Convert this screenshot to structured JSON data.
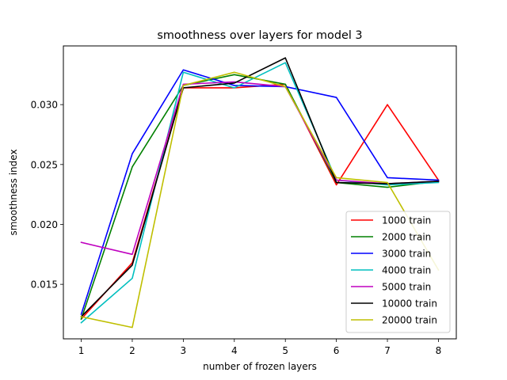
{
  "chart_data": {
    "type": "line",
    "title": "smoothness over layers for model 3",
    "xlabel": "number of frozen layers",
    "ylabel": "smoothness index",
    "x": [
      1,
      2,
      3,
      4,
      5,
      6,
      7,
      8
    ],
    "xticks": [
      "1",
      "2",
      "3",
      "4",
      "5",
      "6",
      "7",
      "8"
    ],
    "yticks": [
      0.015,
      0.02,
      0.025,
      0.03
    ],
    "ytick_labels": [
      "0.015",
      "0.020",
      "0.025",
      "0.030"
    ],
    "xlim": [
      0.65,
      8.35
    ],
    "ylim": [
      0.01045,
      0.0349
    ],
    "grid": false,
    "legend_position": "lower-right",
    "series": [
      {
        "name": "1000 train",
        "color": "#ff0000",
        "values": [
          0.0121,
          0.0168,
          0.0314,
          0.0314,
          0.0317,
          0.0233,
          0.03,
          0.0237
        ]
      },
      {
        "name": "2000 train",
        "color": "#008000",
        "values": [
          0.0121,
          0.0248,
          0.0316,
          0.0325,
          0.0317,
          0.0235,
          0.0231,
          0.0236
        ]
      },
      {
        "name": "3000 train",
        "color": "#0000ff",
        "values": [
          0.0125,
          0.0259,
          0.0329,
          0.0316,
          0.0315,
          0.0306,
          0.0239,
          0.0237
        ]
      },
      {
        "name": "4000 train",
        "color": "#00bfbf",
        "values": [
          0.0118,
          0.0155,
          0.0327,
          0.0314,
          0.0335,
          0.0237,
          0.0233,
          0.0235
        ]
      },
      {
        "name": "5000 train",
        "color": "#bf00bf",
        "values": [
          0.0185,
          0.0175,
          0.0317,
          0.0319,
          0.0315,
          0.0237,
          0.0234,
          0.0236
        ]
      },
      {
        "name": "10000 train",
        "color": "#000000",
        "values": [
          0.0123,
          0.0166,
          0.0314,
          0.0318,
          0.0339,
          0.0235,
          0.0234,
          0.0236
        ]
      },
      {
        "name": "20000 train",
        "color": "#bfbf00",
        "values": [
          0.0123,
          0.0114,
          0.0316,
          0.0327,
          0.0315,
          0.0239,
          0.0235,
          0.0162
        ]
      }
    ]
  }
}
